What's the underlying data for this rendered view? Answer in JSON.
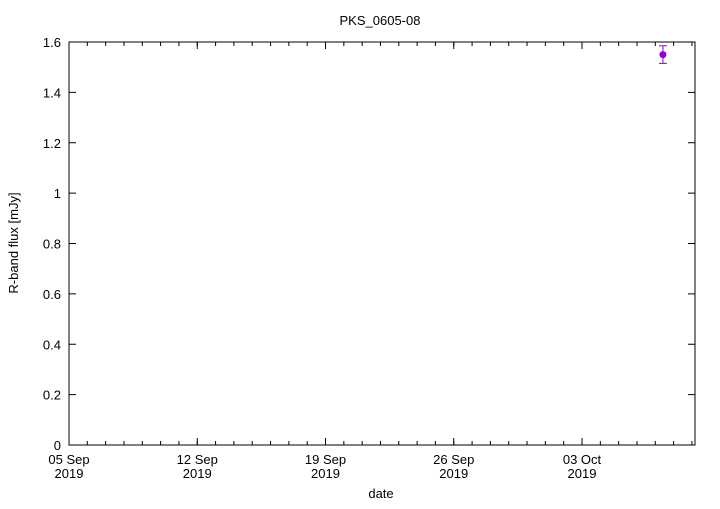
{
  "chart_data": {
    "type": "scatter",
    "title": "PKS_0605-08",
    "xlabel": "date",
    "ylabel": "R-band flux [mJy]",
    "xlim": [
      "2019-09-05T00:00",
      "2019-10-09T04:00"
    ],
    "ylim": [
      0,
      1.6
    ],
    "grid": false,
    "x_ticks": [
      {
        "date": "2019-09-05",
        "label": [
          "05 Sep",
          "2019"
        ]
      },
      {
        "date": "2019-09-12",
        "label": [
          "12 Sep",
          "2019"
        ]
      },
      {
        "date": "2019-09-19",
        "label": [
          "19 Sep",
          "2019"
        ]
      },
      {
        "date": "2019-09-26",
        "label": [
          "26 Sep",
          "2019"
        ]
      },
      {
        "date": "2019-10-03",
        "label": [
          "03 Oct",
          "2019"
        ]
      }
    ],
    "y_ticks": [
      "0",
      "0.2",
      "0.4",
      "0.6",
      "0.8",
      "1",
      "1.2",
      "1.4",
      "1.6"
    ],
    "series": [
      {
        "color": "#9400d3",
        "points": [
          {
            "x": "2019-10-07T10:00",
            "y": 1.55,
            "yerr": 0.035
          }
        ]
      }
    ]
  }
}
